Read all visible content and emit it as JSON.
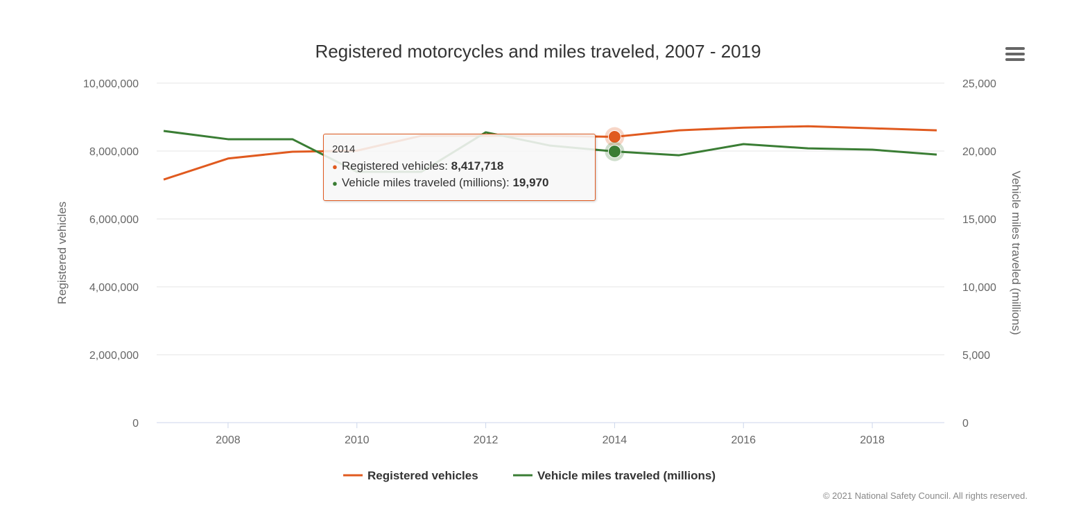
{
  "chart_data": {
    "type": "line",
    "title": "Registered motorcycles and miles traveled, 2007 - 2019",
    "x": [
      2007,
      2008,
      2009,
      2010,
      2011,
      2012,
      2013,
      2014,
      2015,
      2016,
      2017,
      2018,
      2019
    ],
    "x_ticks": [
      "2008",
      "2010",
      "2012",
      "2014",
      "2016",
      "2018"
    ],
    "series": [
      {
        "name": "Registered vehicles",
        "axis": "left",
        "color": "#e05a1f",
        "values": [
          7160000,
          7780000,
          7980000,
          8010000,
          8450000,
          8450000,
          8450000,
          8417718,
          8610000,
          8690000,
          8730000,
          8670000,
          8610000
        ]
      },
      {
        "name": "Vehicle miles traveled (millions)",
        "axis": "right",
        "color": "#3a7d34",
        "values": [
          21480,
          20870,
          20870,
          18470,
          18470,
          21380,
          20400,
          19970,
          19690,
          20510,
          20200,
          20100,
          19740
        ]
      }
    ],
    "left_axis": {
      "label": "Registered vehicles",
      "ylim": [
        0,
        10000000
      ],
      "ticks": [
        "0",
        "2,000,000",
        "4,000,000",
        "6,000,000",
        "8,000,000",
        "10,000,000"
      ]
    },
    "right_axis": {
      "label": "Vehicle miles traveled (millions)",
      "ylim": [
        0,
        25000
      ],
      "ticks": [
        "0",
        "5,000",
        "10,000",
        "15,000",
        "20,000",
        "25,000"
      ]
    },
    "grid": true,
    "legend": "bottom"
  },
  "tooltip": {
    "year": "2014",
    "rows": [
      {
        "label": "Registered vehicles: ",
        "value": "8,417,718"
      },
      {
        "label": "Vehicle miles traveled (millions): ",
        "value": "19,970"
      }
    ]
  },
  "menu_icon": "hamburger-menu-icon",
  "credit": "© 2021 National Safety Council. All rights reserved."
}
